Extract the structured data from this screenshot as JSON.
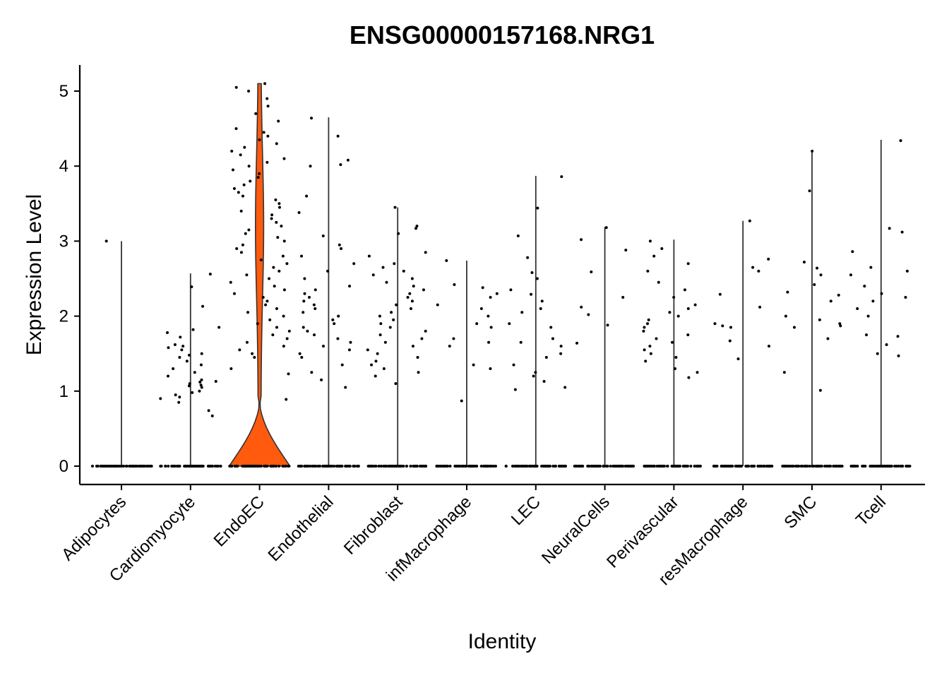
{
  "chart_data": {
    "type": "violin",
    "title": "ENSG00000157168.NRG1",
    "xlabel": "Identity",
    "ylabel": "Expression Level",
    "ylim": [
      -0.25,
      5.35
    ],
    "yticks": [
      0,
      1,
      2,
      3,
      4,
      5
    ],
    "grid": false,
    "legend": "none",
    "fill_color": "#FF5A0E",
    "categories": [
      "Adipocytes",
      "Cardiomyocyte",
      "EndoEC",
      "Endothelial",
      "Fibroblast",
      "infMacrophage",
      "LEC",
      "NeuralCells",
      "Perivascular",
      "resMacrophage",
      "SMC",
      "Tcell"
    ],
    "series": [
      {
        "max": 3.0,
        "n_zero": 60,
        "points": [
          3.0
        ]
      },
      {
        "max": 2.57,
        "n_zero": 60,
        "points": [
          0.67,
          0.85,
          0.9,
          0.95,
          0.98,
          1.0,
          1.05,
          1.08,
          1.1,
          1.12,
          1.13,
          1.15,
          1.2,
          1.25,
          1.3,
          1.35,
          1.4,
          1.45,
          1.5,
          1.55,
          1.6,
          1.62,
          1.72,
          1.78,
          1.82,
          1.85,
          2.13,
          2.39,
          2.56,
          0.74,
          0.92,
          1.07,
          1.48,
          1.58
        ]
      },
      {
        "max": 5.1,
        "n_zero": 60,
        "points": [
          0.89,
          1.23,
          1.3,
          1.45,
          1.5,
          1.55,
          1.6,
          1.65,
          1.7,
          1.75,
          1.8,
          1.85,
          1.9,
          1.95,
          2.0,
          2.05,
          2.1,
          2.15,
          2.2,
          2.25,
          2.3,
          2.35,
          2.4,
          2.45,
          2.5,
          2.55,
          2.6,
          2.65,
          2.7,
          2.75,
          2.8,
          2.85,
          2.9,
          2.95,
          3.0,
          3.05,
          3.1,
          3.15,
          3.2,
          3.25,
          3.3,
          3.35,
          3.4,
          3.45,
          3.5,
          3.55,
          3.6,
          3.65,
          3.7,
          3.75,
          3.8,
          3.85,
          3.9,
          3.95,
          4.0,
          4.05,
          4.1,
          4.15,
          4.2,
          4.25,
          4.3,
          4.35,
          4.4,
          4.45,
          4.5,
          4.6,
          4.7,
          4.8,
          4.9,
          5.0,
          5.05,
          5.1
        ]
      },
      {
        "max": 4.65,
        "n_zero": 60,
        "points": [
          1.05,
          1.15,
          1.25,
          1.35,
          1.45,
          1.5,
          1.55,
          1.6,
          1.65,
          1.7,
          1.75,
          1.8,
          1.85,
          1.9,
          1.95,
          2.0,
          2.05,
          2.1,
          2.15,
          2.2,
          2.25,
          2.3,
          2.35,
          2.4,
          2.5,
          2.6,
          2.7,
          2.8,
          2.9,
          2.95,
          3.07,
          3.38,
          3.6,
          4.0,
          4.02,
          4.08,
          4.4,
          4.64
        ]
      },
      {
        "max": 3.45,
        "n_zero": 60,
        "points": [
          1.1,
          1.2,
          1.25,
          1.3,
          1.35,
          1.4,
          1.45,
          1.5,
          1.55,
          1.6,
          1.65,
          1.7,
          1.75,
          1.8,
          1.85,
          1.9,
          1.95,
          2.0,
          2.05,
          2.1,
          2.15,
          2.2,
          2.25,
          2.3,
          2.35,
          2.4,
          2.45,
          2.5,
          2.55,
          2.6,
          2.65,
          2.7,
          2.8,
          2.85,
          3.1,
          3.17,
          3.2,
          3.45
        ]
      },
      {
        "max": 2.74,
        "n_zero": 60,
        "points": [
          0.87,
          1.3,
          1.35,
          1.6,
          1.65,
          1.7,
          1.85,
          1.9,
          2.0,
          2.1,
          2.15,
          2.25,
          2.3,
          2.38,
          2.42,
          2.74
        ]
      },
      {
        "max": 3.87,
        "n_zero": 60,
        "points": [
          1.02,
          1.05,
          1.13,
          1.2,
          1.25,
          1.35,
          1.45,
          1.5,
          1.6,
          1.65,
          1.7,
          1.85,
          1.9,
          2.05,
          2.1,
          2.2,
          2.29,
          2.35,
          2.5,
          2.58,
          2.78,
          3.07,
          3.44,
          3.86
        ]
      },
      {
        "max": 3.19,
        "n_zero": 60,
        "points": [
          1.64,
          1.88,
          2.02,
          2.12,
          2.25,
          2.59,
          2.88,
          3.02,
          3.18
        ]
      },
      {
        "max": 3.02,
        "n_zero": 60,
        "points": [
          1.18,
          1.25,
          1.3,
          1.4,
          1.45,
          1.5,
          1.55,
          1.6,
          1.65,
          1.7,
          1.75,
          1.8,
          1.85,
          1.9,
          1.95,
          2.0,
          2.05,
          2.1,
          2.15,
          2.25,
          2.35,
          2.45,
          2.6,
          2.7,
          2.8,
          2.9,
          3.0
        ]
      },
      {
        "max": 3.27,
        "n_zero": 60,
        "points": [
          1.43,
          1.6,
          1.67,
          1.85,
          1.87,
          1.9,
          2.12,
          2.29,
          2.6,
          2.65,
          2.76,
          3.27
        ]
      },
      {
        "max": 4.2,
        "n_zero": 60,
        "points": [
          1.01,
          1.25,
          1.7,
          1.85,
          1.87,
          1.9,
          1.95,
          2.0,
          2.2,
          2.28,
          2.32,
          2.42,
          2.55,
          2.64,
          2.72,
          3.67,
          4.2
        ]
      },
      {
        "max": 4.35,
        "n_zero": 60,
        "points": [
          1.47,
          1.5,
          1.62,
          1.73,
          1.75,
          2.0,
          2.1,
          2.2,
          2.25,
          2.3,
          2.4,
          2.55,
          2.6,
          2.65,
          2.86,
          3.12,
          3.17,
          4.34
        ]
      }
    ]
  }
}
